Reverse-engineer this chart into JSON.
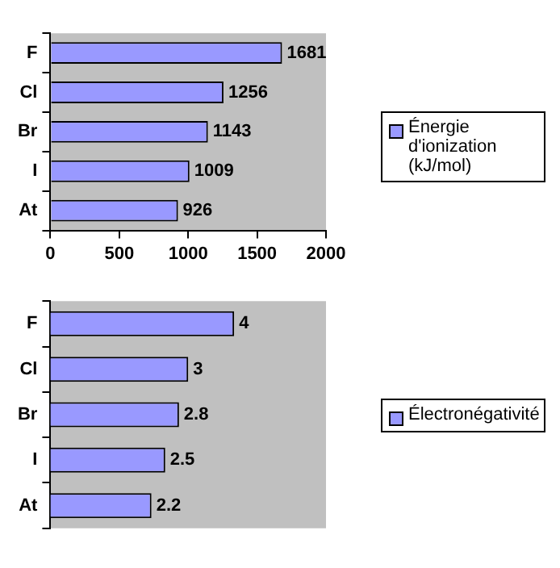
{
  "chart_data": [
    {
      "type": "bar",
      "orientation": "horizontal",
      "categories": [
        "F",
        "Cl",
        "Br",
        "I",
        "At"
      ],
      "series": [
        {
          "name": "Énergie d'ionization (kJ/mol)",
          "color": "#9999ff",
          "values": [
            1681,
            1256,
            1143,
            1009,
            926
          ]
        }
      ],
      "xlim": [
        0,
        2000
      ],
      "xticks": [
        0,
        500,
        1000,
        1500,
        2000
      ],
      "grid": false,
      "legend": "right",
      "data_labels": true
    },
    {
      "type": "bar",
      "orientation": "horizontal",
      "categories": [
        "F",
        "Cl",
        "Br",
        "I",
        "At"
      ],
      "series": [
        {
          "name": "Électronégativité",
          "color": "#9999ff",
          "values": [
            4,
            3,
            2.8,
            2.5,
            2.2
          ]
        }
      ],
      "xlim": [
        0,
        6
      ],
      "grid": false,
      "legend": "right",
      "data_labels": true,
      "tick_labels": "y"
    }
  ]
}
